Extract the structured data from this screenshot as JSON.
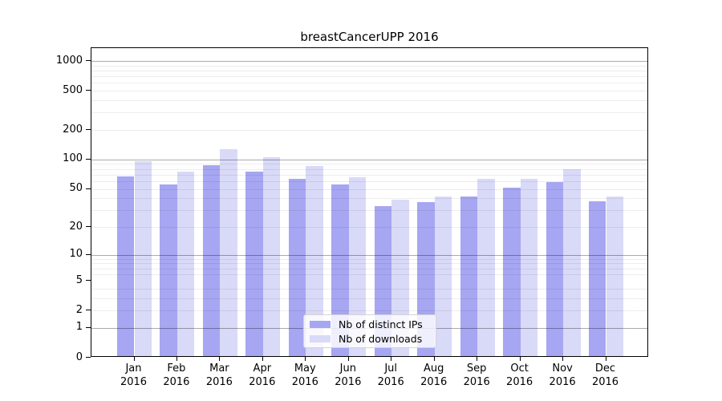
{
  "figure": {
    "title": "breastCancerUPP 2016"
  },
  "legend": {
    "items": [
      {
        "label": "Nb of distinct IPs",
        "color": "#a6a6f2"
      },
      {
        "label": "Nb of downloads",
        "color": "#d9d9f8"
      }
    ]
  },
  "axes": {
    "y_tick_labels": [
      "0",
      "1",
      "2",
      "5",
      "10",
      "20",
      "50",
      "100",
      "200",
      "500",
      "1000"
    ],
    "x_year_line": "2016"
  },
  "chart_data": {
    "type": "bar",
    "title": "breastCancerUPP 2016",
    "categories": [
      "Jan",
      "Feb",
      "Mar",
      "Apr",
      "May",
      "Jun",
      "Jul",
      "Aug",
      "Sep",
      "Oct",
      "Nov",
      "Dec"
    ],
    "category_year": "2016",
    "series": [
      {
        "name": "Nb of distinct IPs",
        "color": "#a6a6f2",
        "values": [
          65,
          53,
          85,
          72,
          61,
          53,
          32,
          35,
          40,
          50,
          57,
          36
        ]
      },
      {
        "name": "Nb of downloads",
        "color": "#d9d9f8",
        "values": [
          93,
          73,
          122,
          101,
          83,
          64,
          37,
          40,
          61,
          61,
          76,
          40
        ]
      }
    ],
    "yscale": "log1p",
    "yticks": [
      0,
      1,
      2,
      5,
      10,
      20,
      50,
      100,
      200,
      500,
      1000
    ],
    "ylim": [
      0,
      1350
    ],
    "grid_major": [
      1,
      10,
      100,
      1000
    ],
    "grid_minor": [
      2,
      3,
      4,
      6,
      7,
      8,
      9,
      20,
      30,
      40,
      50,
      60,
      70,
      80,
      90,
      200,
      300,
      400,
      500,
      600,
      700,
      800,
      900
    ],
    "grid": "on",
    "legend_position": "lower-center",
    "xlabel": "",
    "ylabel": ""
  },
  "style": {
    "major_grid_color": "#b0b0b0",
    "minor_grid_color": "#ececec",
    "spine_color": "#000000",
    "background": "#ffffff"
  }
}
